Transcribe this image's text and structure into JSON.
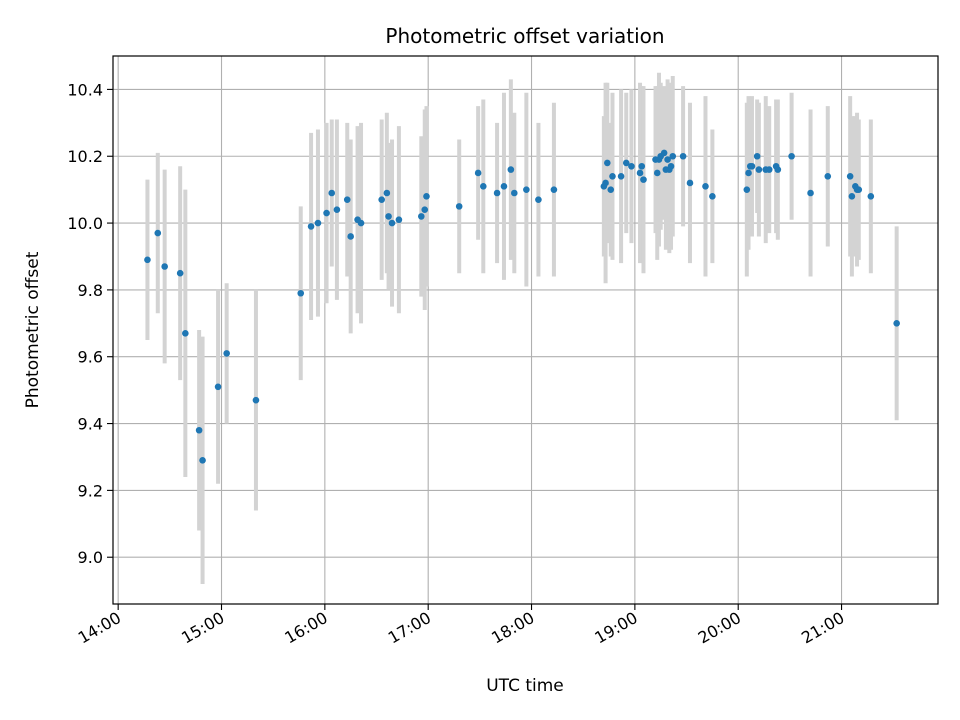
{
  "chart_data": {
    "type": "scatter",
    "title": "Photometric offset variation",
    "xlabel": "UTC time",
    "ylabel": "Photometric offset",
    "x_ticks": [
      "14:00",
      "15:00",
      "16:00",
      "17:00",
      "18:00",
      "19:00",
      "20:00",
      "21:00"
    ],
    "y_ticks": [
      "9.0",
      "9.2",
      "9.4",
      "9.6",
      "9.8",
      "10.0",
      "10.2",
      "10.4"
    ],
    "xlim": [
      "13:57",
      "21:56"
    ],
    "ylim": [
      8.86,
      10.5
    ],
    "grid": true,
    "colors": {
      "point": "#1f77b4",
      "errorbar": "#d3d3d3",
      "grid": "#b0b0b0"
    },
    "series": [
      {
        "x": [
          "14:17",
          "14:23",
          "14:27",
          "14:36",
          "14:39",
          "14:47",
          "14:49",
          "14:58",
          "15:03",
          "15:20",
          "15:46",
          "15:52",
          "15:56",
          "16:01",
          "16:04",
          "16:07",
          "16:13",
          "16:15",
          "16:19",
          "16:21",
          "16:33",
          "16:36",
          "16:37",
          "16:39",
          "16:43",
          "16:56",
          "16:58",
          "16:59",
          "17:18",
          "17:29",
          "17:32",
          "17:40",
          "17:44",
          "17:48",
          "17:50",
          "17:57",
          "18:04",
          "18:13",
          "18:42",
          "18:43",
          "18:44",
          "18:46",
          "18:47",
          "18:52",
          "18:55",
          "18:58",
          "19:03",
          "19:04",
          "19:05",
          "19:12",
          "19:13",
          "19:14",
          "19:15",
          "19:17",
          "19:18",
          "19:19",
          "19:20",
          "19:21",
          "19:22",
          "19:28",
          "19:32",
          "19:41",
          "19:45",
          "20:05",
          "20:06",
          "20:07",
          "20:08",
          "20:11",
          "20:12",
          "20:16",
          "20:18",
          "20:22",
          "20:23",
          "20:31",
          "20:42",
          "20:52",
          "21:05",
          "21:06",
          "21:08",
          "21:09",
          "21:10",
          "21:17",
          "21:32"
        ],
        "y": [
          9.89,
          9.97,
          9.87,
          9.85,
          9.67,
          9.38,
          9.29,
          9.51,
          9.61,
          9.47,
          9.79,
          9.99,
          10.0,
          10.03,
          10.09,
          10.04,
          10.07,
          9.96,
          10.01,
          10.0,
          10.07,
          10.09,
          10.02,
          10.0,
          10.01,
          10.02,
          10.04,
          10.08,
          10.05,
          10.15,
          10.11,
          10.09,
          10.11,
          10.16,
          10.09,
          10.1,
          10.07,
          10.1,
          10.11,
          10.12,
          10.18,
          10.1,
          10.14,
          10.14,
          10.18,
          10.17,
          10.15,
          10.17,
          10.13,
          10.19,
          10.15,
          10.19,
          10.2,
          10.21,
          10.16,
          10.19,
          10.16,
          10.17,
          10.2,
          10.2,
          10.12,
          10.11,
          10.08,
          10.1,
          10.15,
          10.17,
          10.17,
          10.2,
          10.16,
          10.16,
          10.16,
          10.17,
          10.16,
          10.2,
          10.09,
          10.14,
          10.14,
          10.08,
          10.11,
          10.1,
          10.1,
          10.08,
          9.7
        ],
        "err": [
          0.24,
          0.24,
          0.29,
          0.32,
          0.43,
          0.3,
          0.37,
          0.29,
          0.21,
          0.33,
          0.26,
          0.28,
          0.28,
          0.27,
          0.22,
          0.27,
          0.23,
          0.29,
          0.28,
          0.3,
          0.24,
          0.24,
          0.22,
          0.25,
          0.28,
          0.24,
          0.3,
          0.27,
          0.2,
          0.2,
          0.26,
          0.21,
          0.28,
          0.27,
          0.24,
          0.29,
          0.23,
          0.26,
          0.21,
          0.3,
          0.24,
          0.2,
          0.25,
          0.26,
          0.21,
          0.23,
          0.27,
          0.24,
          0.28,
          0.22,
          0.26,
          0.26,
          0.22,
          0.2,
          0.24,
          0.24,
          0.25,
          0.25,
          0.24,
          0.21,
          0.24,
          0.27,
          0.2,
          0.26,
          0.23,
          0.2,
          0.21,
          0.17,
          0.2,
          0.22,
          0.19,
          0.2,
          0.21,
          0.19,
          0.25,
          0.21,
          0.24,
          0.24,
          0.21,
          0.23,
          0.21,
          0.23,
          0.29
        ]
      }
    ]
  }
}
